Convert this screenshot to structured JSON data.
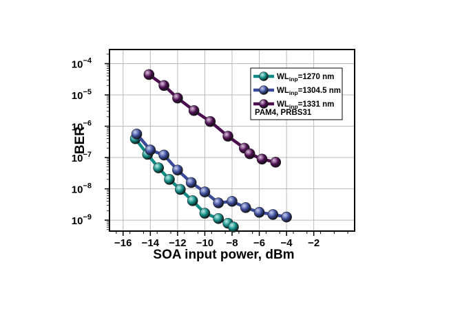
{
  "chart_data": {
    "type": "line",
    "xlabel": "SOA input power, dBm",
    "ylabel": "BER",
    "xlim": [
      -17,
      1
    ],
    "ylim": [
      -9.35,
      -3.55
    ],
    "y_scale": "log",
    "grid": true,
    "x_ticks": [
      {
        "value": -16,
        "label": "−16"
      },
      {
        "value": -14,
        "label": "−14"
      },
      {
        "value": -12,
        "label": "−12"
      },
      {
        "value": -10,
        "label": "−10"
      },
      {
        "value": -8,
        "label": "−8"
      },
      {
        "value": -6,
        "label": "−6"
      },
      {
        "value": -4,
        "label": "−4"
      },
      {
        "value": -2,
        "label": "−2"
      }
    ],
    "y_ticks": [
      {
        "value": -9,
        "base": "10",
        "exp": "−9"
      },
      {
        "value": -8,
        "base": "10",
        "exp": "−8"
      },
      {
        "value": -7,
        "base": "10",
        "exp": "−7"
      },
      {
        "value": -6,
        "base": "10",
        "exp": "−6"
      },
      {
        "value": -5,
        "base": "10",
        "exp": "−5"
      },
      {
        "value": -4,
        "base": "10",
        "exp": "−4"
      }
    ],
    "legend_placement": "top-right",
    "annotation": "PAM4, PRBS31",
    "series": [
      {
        "name_prefix": "WL",
        "name_sub": "inp",
        "name_suffix": "=1270 nm",
        "color": "#0f8a84",
        "marker_highlight": "#bfeeea",
        "x": [
          -15.1,
          -14.2,
          -13.4,
          -12.6,
          -11.8,
          -10.9,
          -10.0,
          -9.0,
          -8.3,
          -7.9
        ],
        "logy": [
          -6.4,
          -6.9,
          -7.33,
          -7.7,
          -8.02,
          -8.38,
          -8.78,
          -8.95,
          -9.1,
          -9.22
        ]
      },
      {
        "name_prefix": "WL",
        "name_sub": "inp",
        "name_suffix": "=1304.5 nm",
        "color": "#3a4a98",
        "marker_highlight": "#c9d0f2",
        "x": [
          -15.0,
          -14.0,
          -13.0,
          -12.0,
          -11.0,
          -10.0,
          -9.0,
          -8.0,
          -7.0,
          -6.0,
          -5.0,
          -4.0
        ],
        "logy": [
          -6.25,
          -6.76,
          -6.92,
          -7.4,
          -7.8,
          -8.1,
          -8.45,
          -8.4,
          -8.6,
          -8.75,
          -8.82,
          -8.9
        ]
      },
      {
        "name_prefix": "WL",
        "name_sub": "inp",
        "name_suffix": "=1331 nm",
        "color": "#4b0f50",
        "marker_highlight": "#e0c3e2",
        "x": [
          -14.1,
          -13.0,
          -12.0,
          -10.8,
          -9.6,
          -8.3,
          -7.1,
          -6.7,
          -5.8,
          -4.8
        ],
        "logy": [
          -4.35,
          -4.7,
          -5.1,
          -5.5,
          -5.85,
          -6.32,
          -6.7,
          -6.88,
          -7.05,
          -7.15
        ]
      }
    ]
  }
}
